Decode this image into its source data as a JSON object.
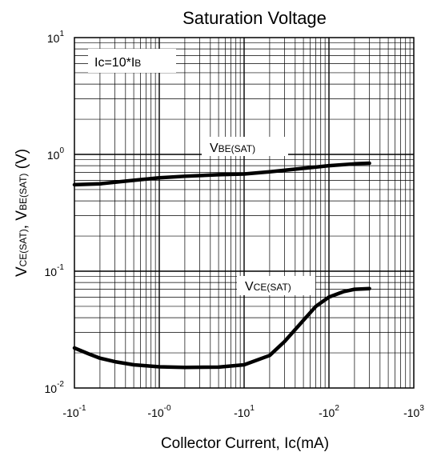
{
  "chart_data": {
    "type": "line",
    "title": "Saturation Voltage",
    "xlabel": "Collector Current, Ic(mA)",
    "ylabel": {
      "prefix1": "V",
      "sub1": "CE(SAT)",
      "sep": ", ",
      "prefix2": "V",
      "sub2": "BE(SAT)",
      "suffix": " (V)"
    },
    "xscale": "log",
    "yscale": "log",
    "xlim": [
      0.1,
      1000
    ],
    "ylim": [
      0.01,
      10
    ],
    "x_ticks": [
      {
        "base": "-10",
        "exp": "-1"
      },
      {
        "base": "-10",
        "exp": "-0"
      },
      {
        "base": "-10",
        "exp": "1"
      },
      {
        "base": "-10",
        "exp": "2"
      },
      {
        "base": "-10",
        "exp": "3"
      }
    ],
    "y_ticks": [
      {
        "base": "10",
        "exp": "-2"
      },
      {
        "base": "10",
        "exp": "-1"
      },
      {
        "base": "10",
        "exp": "0"
      },
      {
        "base": "10",
        "exp": "1"
      }
    ],
    "annotation": {
      "main": "Ic=10*I",
      "sub": "B"
    },
    "grid": true,
    "series": [
      {
        "label_main": "V",
        "label_sub": "BE(SAT)",
        "x": [
          0.1,
          0.2,
          0.5,
          1,
          2,
          5,
          10,
          20,
          50,
          100,
          200,
          300
        ],
        "y": [
          0.55,
          0.56,
          0.6,
          0.63,
          0.65,
          0.67,
          0.68,
          0.71,
          0.76,
          0.8,
          0.83,
          0.84
        ]
      },
      {
        "label_main": "V",
        "label_sub": "CE(SAT)",
        "x": [
          0.1,
          0.15,
          0.2,
          0.3,
          0.5,
          1,
          2,
          5,
          10,
          20,
          30,
          50,
          70,
          100,
          150,
          200,
          300
        ],
        "y": [
          0.022,
          0.0195,
          0.018,
          0.0168,
          0.0158,
          0.0152,
          0.015,
          0.0151,
          0.0158,
          0.019,
          0.025,
          0.038,
          0.05,
          0.06,
          0.067,
          0.07,
          0.071
        ]
      }
    ]
  }
}
